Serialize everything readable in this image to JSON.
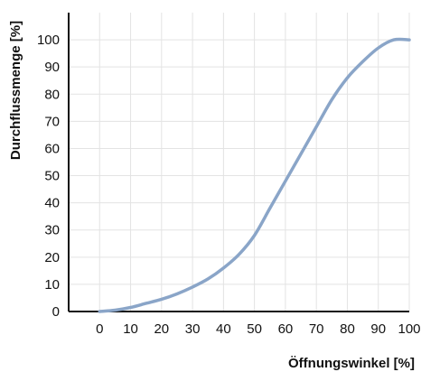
{
  "chart_data": {
    "type": "line",
    "title": "",
    "xlabel": "Öffnungswinkel [%]",
    "ylabel": "Durchflussmenge [%]",
    "xlim": [
      -10,
      100
    ],
    "ylim": [
      0,
      110
    ],
    "xticks": [
      0,
      10,
      20,
      30,
      40,
      50,
      60,
      70,
      80,
      90,
      100
    ],
    "yticks": [
      0,
      10,
      20,
      30,
      40,
      50,
      60,
      70,
      80,
      90,
      100
    ],
    "grid": true,
    "line_color": "#8aa5c8",
    "series": [
      {
        "x": [
          0,
          5,
          10,
          15,
          20,
          25,
          30,
          35,
          40,
          45,
          50,
          55,
          60,
          65,
          70,
          75,
          80,
          85,
          90,
          95,
          100
        ],
        "y": [
          0,
          0.5,
          1.5,
          3,
          4.5,
          6.5,
          9,
          12,
          16,
          21,
          28,
          38,
          48,
          58,
          68,
          78,
          86,
          92,
          97,
          100,
          100
        ]
      }
    ]
  }
}
